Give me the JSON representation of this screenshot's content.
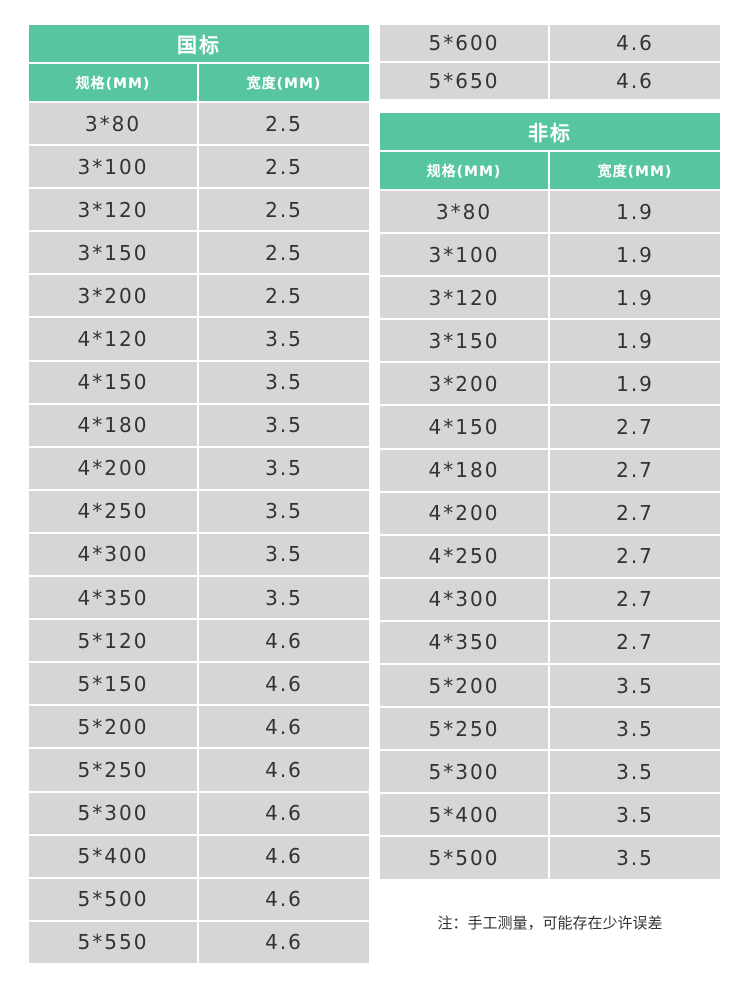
{
  "guobiao": {
    "title": "国标",
    "headers": [
      "规格(MM)",
      "宽度(MM)"
    ],
    "rows": [
      [
        "3*80",
        "2.5"
      ],
      [
        "3*100",
        "2.5"
      ],
      [
        "3*120",
        "2.5"
      ],
      [
        "3*150",
        "2.5"
      ],
      [
        "3*200",
        "2.5"
      ],
      [
        "4*120",
        "3.5"
      ],
      [
        "4*150",
        "3.5"
      ],
      [
        "4*180",
        "3.5"
      ],
      [
        "4*200",
        "3.5"
      ],
      [
        "4*250",
        "3.5"
      ],
      [
        "4*300",
        "3.5"
      ],
      [
        "4*350",
        "3.5"
      ],
      [
        "5*120",
        "4.6"
      ],
      [
        "5*150",
        "4.6"
      ],
      [
        "5*200",
        "4.6"
      ],
      [
        "5*250",
        "4.6"
      ],
      [
        "5*300",
        "4.6"
      ],
      [
        "5*400",
        "4.6"
      ],
      [
        "5*500",
        "4.6"
      ],
      [
        "5*550",
        "4.6"
      ],
      [
        "5*600",
        "4.6"
      ],
      [
        "5*650",
        "4.6"
      ]
    ]
  },
  "feibiao": {
    "title": "非标",
    "headers": [
      "规格(MM)",
      "宽度(MM)"
    ],
    "rows": [
      [
        "3*80",
        "1.9"
      ],
      [
        "3*100",
        "1.9"
      ],
      [
        "3*120",
        "1.9"
      ],
      [
        "3*150",
        "1.9"
      ],
      [
        "3*200",
        "1.9"
      ],
      [
        "4*150",
        "2.7"
      ],
      [
        "4*180",
        "2.7"
      ],
      [
        "4*200",
        "2.7"
      ],
      [
        "4*250",
        "2.7"
      ],
      [
        "4*300",
        "2.7"
      ],
      [
        "4*350",
        "2.7"
      ],
      [
        "5*200",
        "3.5"
      ],
      [
        "5*250",
        "3.5"
      ],
      [
        "5*300",
        "3.5"
      ],
      [
        "5*400",
        "3.5"
      ],
      [
        "5*500",
        "3.5"
      ]
    ]
  },
  "note": "注：手工测量，可能存在少许误差",
  "colors": {
    "header": "#57c5a0",
    "cell": "#d6d6d6"
  }
}
